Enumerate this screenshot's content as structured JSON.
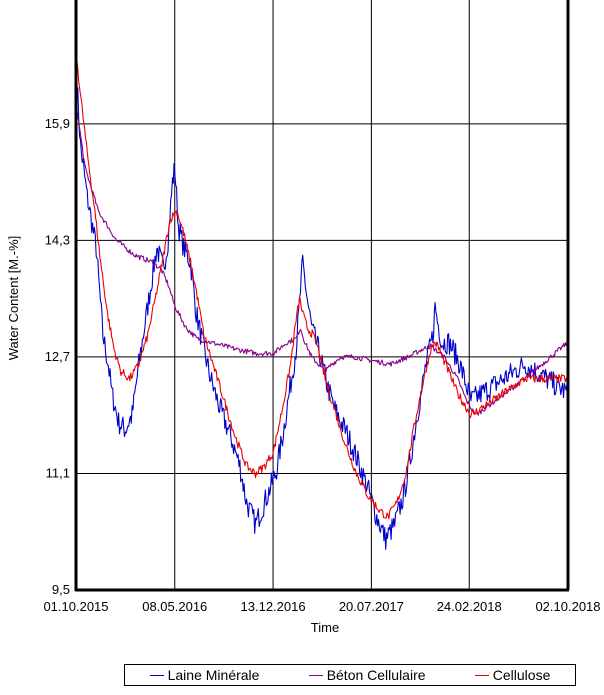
{
  "chart_data": {
    "type": "line",
    "xlabel": "Time",
    "ylabel": "Water Content [M.-%]",
    "ylim": [
      9.5,
      17.6
    ],
    "yticks": [
      9.5,
      11.1,
      12.7,
      14.3,
      15.9
    ],
    "ytick_labels": [
      "9,5",
      "11,1",
      "12,7",
      "14,3",
      "15,9"
    ],
    "xlim": [
      0,
      1096
    ],
    "xticks": [
      0,
      220,
      439,
      658,
      876,
      1096
    ],
    "xtick_labels": [
      "01.10.2015",
      "08.05.2016",
      "13.12.2016",
      "20.07.2017",
      "24.02.2018",
      "02.10.2018"
    ],
    "grid": true,
    "legend_position": "bottom",
    "series": [
      {
        "name": "Laine Minérale",
        "color": "#0000cc",
        "points": [
          [
            0,
            16.7
          ],
          [
            10,
            15.6
          ],
          [
            25,
            14.9
          ],
          [
            45,
            14.2
          ],
          [
            60,
            13.0
          ],
          [
            72,
            12.6
          ],
          [
            80,
            12.2
          ],
          [
            95,
            11.8
          ],
          [
            110,
            11.7
          ],
          [
            125,
            11.9
          ],
          [
            140,
            12.6
          ],
          [
            160,
            13.4
          ],
          [
            180,
            14.2
          ],
          [
            195,
            13.9
          ],
          [
            205,
            14.3
          ],
          [
            215,
            15.1
          ],
          [
            220,
            15.3
          ],
          [
            228,
            14.5
          ],
          [
            240,
            14.2
          ],
          [
            255,
            14.0
          ],
          [
            268,
            13.3
          ],
          [
            285,
            12.8
          ],
          [
            300,
            12.4
          ],
          [
            320,
            12.0
          ],
          [
            345,
            11.6
          ],
          [
            365,
            11.2
          ],
          [
            380,
            10.7
          ],
          [
            400,
            10.4
          ],
          [
            420,
            10.7
          ],
          [
            445,
            11.1
          ],
          [
            460,
            11.6
          ],
          [
            475,
            12.2
          ],
          [
            490,
            12.8
          ],
          [
            500,
            13.6
          ],
          [
            505,
            14.0
          ],
          [
            515,
            13.5
          ],
          [
            525,
            13.1
          ],
          [
            540,
            12.8
          ],
          [
            560,
            12.3
          ],
          [
            575,
            12.0
          ],
          [
            590,
            11.8
          ],
          [
            600,
            11.7
          ],
          [
            620,
            11.4
          ],
          [
            650,
            10.9
          ],
          [
            670,
            10.5
          ],
          [
            690,
            10.2
          ],
          [
            710,
            10.4
          ],
          [
            730,
            10.8
          ],
          [
            745,
            11.3
          ],
          [
            760,
            11.9
          ],
          [
            780,
            12.6
          ],
          [
            795,
            13.0
          ],
          [
            800,
            13.4
          ],
          [
            805,
            13.2
          ],
          [
            815,
            12.9
          ],
          [
            830,
            12.9
          ],
          [
            840,
            12.8
          ],
          [
            855,
            12.6
          ],
          [
            870,
            12.3
          ],
          [
            880,
            12.1
          ],
          [
            1000,
            12.6
          ],
          [
            1096,
            12.2
          ]
        ]
      },
      {
        "name": "Béton Cellulaire",
        "color": "#8a008a",
        "points": [
          [
            0,
            16.2
          ],
          [
            20,
            15.3
          ],
          [
            50,
            14.7
          ],
          [
            90,
            14.3
          ],
          [
            130,
            14.1
          ],
          [
            170,
            14.0
          ],
          [
            190,
            13.9
          ],
          [
            205,
            13.7
          ],
          [
            220,
            13.4
          ],
          [
            245,
            13.1
          ],
          [
            270,
            12.95
          ],
          [
            300,
            12.9
          ],
          [
            330,
            12.85
          ],
          [
            360,
            12.8
          ],
          [
            400,
            12.75
          ],
          [
            440,
            12.75
          ],
          [
            470,
            12.9
          ],
          [
            490,
            12.95
          ],
          [
            500,
            13.1
          ],
          [
            510,
            12.9
          ],
          [
            525,
            12.7
          ],
          [
            540,
            12.6
          ],
          [
            555,
            12.5
          ],
          [
            570,
            12.6
          ],
          [
            590,
            12.7
          ],
          [
            620,
            12.7
          ],
          [
            660,
            12.65
          ],
          [
            700,
            12.6
          ],
          [
            740,
            12.7
          ],
          [
            770,
            12.8
          ],
          [
            790,
            12.85
          ],
          [
            800,
            12.8
          ],
          [
            820,
            12.7
          ],
          [
            850,
            12.4
          ],
          [
            870,
            12.1
          ],
          [
            890,
            11.9
          ],
          [
            1000,
            12.4
          ],
          [
            1096,
            12.9
          ]
        ]
      },
      {
        "name": "Cellulose",
        "color": "#ee0000",
        "points": [
          [
            0,
            16.9
          ],
          [
            10,
            16.3
          ],
          [
            25,
            15.5
          ],
          [
            40,
            14.8
          ],
          [
            55,
            14.0
          ],
          [
            70,
            13.3
          ],
          [
            85,
            12.8
          ],
          [
            100,
            12.5
          ],
          [
            120,
            12.4
          ],
          [
            140,
            12.6
          ],
          [
            160,
            13.0
          ],
          [
            180,
            13.6
          ],
          [
            195,
            14.1
          ],
          [
            210,
            14.6
          ],
          [
            225,
            14.7
          ],
          [
            240,
            14.4
          ],
          [
            255,
            14.0
          ],
          [
            268,
            13.6
          ],
          [
            285,
            13.0
          ],
          [
            305,
            12.6
          ],
          [
            330,
            12.1
          ],
          [
            355,
            11.6
          ],
          [
            380,
            11.2
          ],
          [
            400,
            11.1
          ],
          [
            420,
            11.2
          ],
          [
            440,
            11.4
          ],
          [
            460,
            12.0
          ],
          [
            478,
            12.6
          ],
          [
            490,
            13.2
          ],
          [
            498,
            13.5
          ],
          [
            505,
            13.3
          ],
          [
            515,
            13.1
          ],
          [
            528,
            13.0
          ],
          [
            540,
            12.8
          ],
          [
            555,
            12.4
          ],
          [
            575,
            12.0
          ],
          [
            600,
            11.5
          ],
          [
            625,
            11.1
          ],
          [
            650,
            10.8
          ],
          [
            675,
            10.6
          ],
          [
            695,
            10.5
          ],
          [
            715,
            10.7
          ],
          [
            735,
            11.1
          ],
          [
            755,
            11.8
          ],
          [
            775,
            12.4
          ],
          [
            790,
            12.8
          ],
          [
            800,
            12.9
          ],
          [
            810,
            12.8
          ],
          [
            830,
            12.5
          ],
          [
            850,
            12.2
          ],
          [
            870,
            12.0
          ],
          [
            880,
            11.9
          ],
          [
            1000,
            12.4
          ],
          [
            1096,
            12.4
          ]
        ]
      }
    ]
  }
}
